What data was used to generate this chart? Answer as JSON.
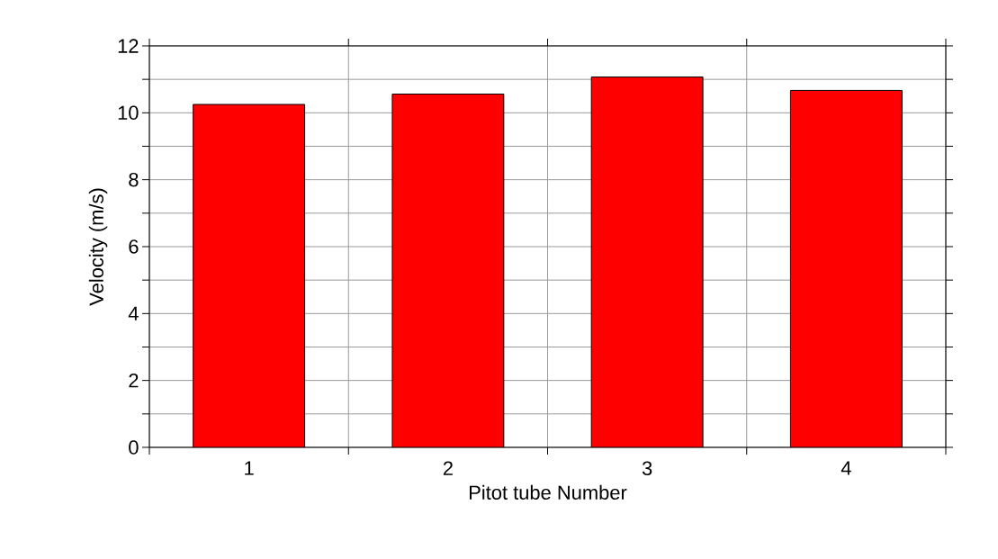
{
  "chart_data": {
    "type": "bar",
    "xlabel": "Pitot tube Number",
    "ylabel": "Velocity (m/s)",
    "categories": [
      "1",
      "2",
      "3",
      "4"
    ],
    "values": [
      10.25,
      10.56,
      11.07,
      10.67
    ],
    "color": "#ff0000",
    "ylim": [
      0,
      12
    ],
    "yticks": [
      0,
      {
        "value": 1,
        "label": null
      },
      2,
      {
        "value": 3,
        "label": null
      },
      4,
      {
        "value": 5,
        "label": null
      },
      6,
      {
        "value": 7,
        "label": null
      },
      8,
      {
        "value": 9,
        "label": null
      },
      10,
      {
        "value": 11,
        "label": null
      },
      12
    ],
    "grid": true
  }
}
